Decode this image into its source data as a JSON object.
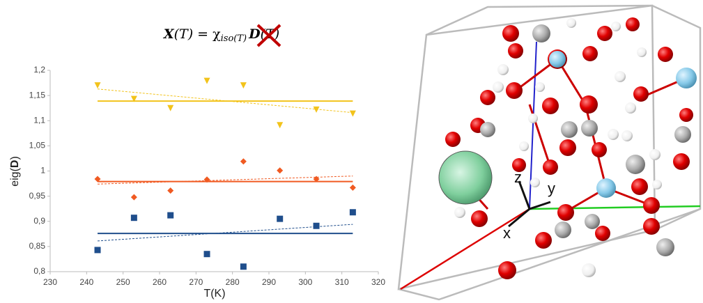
{
  "chart_data": {
    "type": "scatter",
    "title": [
      "X",
      "(T)",
      " = ",
      "χ",
      "iso(T)",
      "D",
      "(T)"
    ],
    "x_label": "T(K)",
    "y_label": [
      "eig(",
      "D",
      ")"
    ],
    "x": [
      243,
      253,
      263,
      273,
      283,
      293,
      303,
      313
    ],
    "series": [
      {
        "color": "#f2c31b",
        "marker": "triangle-down",
        "values": [
          1.17,
          1.143,
          1.125,
          1.179,
          1.17,
          1.091,
          1.122,
          1.114
        ],
        "mean": 1.139,
        "fit": [
          1.163,
          1.116
        ]
      },
      {
        "color": "#f05a22",
        "marker": "diamond",
        "values": [
          0.984,
          0.948,
          0.961,
          0.983,
          1.019,
          1.001,
          0.984,
          0.967
        ],
        "mean": 0.979,
        "fit": [
          0.974,
          0.99
        ]
      },
      {
        "color": "#1f4e8c",
        "marker": "square",
        "values": [
          0.843,
          0.907,
          0.912,
          0.835,
          0.81,
          0.905,
          0.891,
          0.918
        ],
        "mean": 0.876,
        "fit": [
          0.861,
          0.894
        ]
      }
    ],
    "xlim": [
      230,
      320
    ],
    "xticks": [
      230,
      240,
      250,
      260,
      270,
      280,
      290,
      300,
      310,
      320
    ],
    "ylim": [
      0.8,
      1.2
    ],
    "yticks": [
      {
        "value": 0.8,
        "label": "0,8"
      },
      {
        "value": 0.85,
        "label": "0,85"
      },
      {
        "value": 0.9,
        "label": "0,9"
      },
      {
        "value": 0.95,
        "label": "0,95"
      },
      1,
      {
        "value": 1.05,
        "label": "1,05"
      },
      {
        "value": 1.1,
        "label": "1,1"
      },
      {
        "value": 1.15,
        "label": "1,15"
      },
      {
        "value": 1.2,
        "label": "1,2"
      }
    ],
    "grid": false,
    "structure_labels": [
      "z",
      "y",
      "x"
    ]
  }
}
